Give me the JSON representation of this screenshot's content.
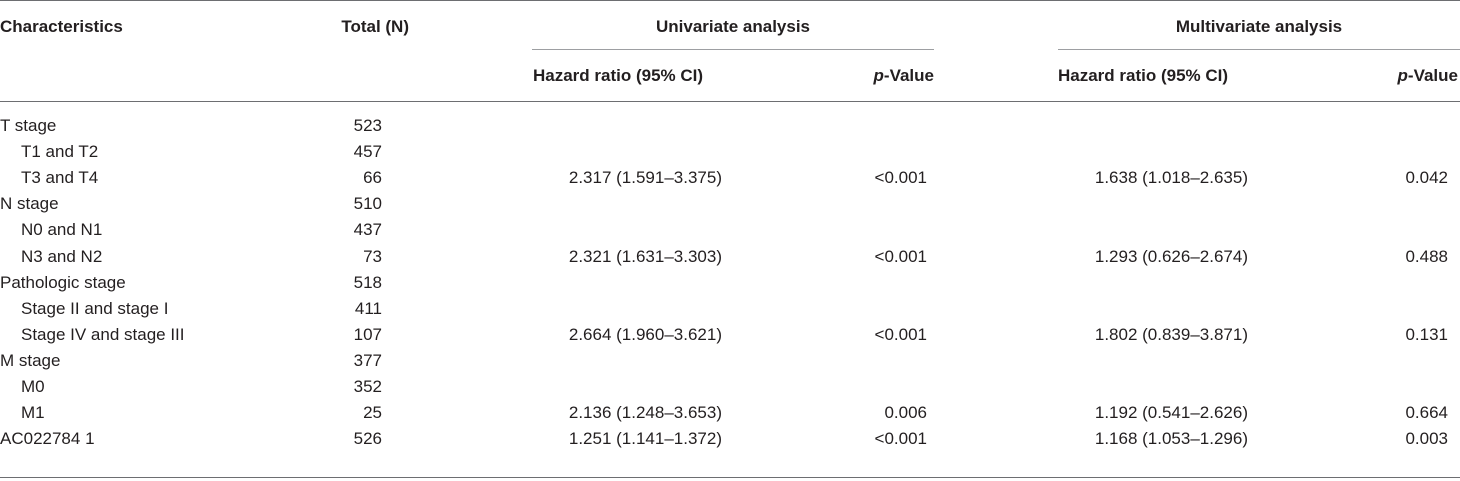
{
  "headers": {
    "characteristics": "Characteristics",
    "total": "Total (N)",
    "univariate": "Univariate analysis",
    "multivariate": "Multivariate analysis",
    "hazard_ratio": "Hazard ratio (95% CI)",
    "p_italic": "p",
    "p_rest": "-Value"
  },
  "rows": [
    {
      "label": "T stage",
      "total": "523",
      "uni_hr": "",
      "uni_p": "",
      "multi_hr": "",
      "multi_p": ""
    },
    {
      "label": "T1 and T2",
      "total": "457",
      "uni_hr": "",
      "uni_p": "",
      "multi_hr": "",
      "multi_p": ""
    },
    {
      "label": "T3 and T4",
      "total": "66",
      "uni_hr": "2.317 (1.591–3.375)",
      "uni_p": "<0.001",
      "multi_hr": "1.638 (1.018–2.635)",
      "multi_p": "0.042"
    },
    {
      "label": "N stage",
      "total": "510",
      "uni_hr": "",
      "uni_p": "",
      "multi_hr": "",
      "multi_p": ""
    },
    {
      "label": "N0 and N1",
      "total": "437",
      "uni_hr": "",
      "uni_p": "",
      "multi_hr": "",
      "multi_p": ""
    },
    {
      "label": "N3 and N2",
      "total": "73",
      "uni_hr": "2.321 (1.631–3.303)",
      "uni_p": "<0.001",
      "multi_hr": "1.293 (0.626–2.674)",
      "multi_p": "0.488"
    },
    {
      "label": "Pathologic stage",
      "total": "518",
      "uni_hr": "",
      "uni_p": "",
      "multi_hr": "",
      "multi_p": ""
    },
    {
      "label": "Stage II and stage I",
      "total": "411",
      "uni_hr": "",
      "uni_p": "",
      "multi_hr": "",
      "multi_p": ""
    },
    {
      "label": "Stage IV and stage III",
      "total": "107",
      "uni_hr": "2.664 (1.960–3.621)",
      "uni_p": "<0.001",
      "multi_hr": "1.802 (0.839–3.871)",
      "multi_p": "0.131"
    },
    {
      "label": "M stage",
      "total": "377",
      "uni_hr": "",
      "uni_p": "",
      "multi_hr": "",
      "multi_p": ""
    },
    {
      "label": "M0",
      "total": "352",
      "uni_hr": "",
      "uni_p": "",
      "multi_hr": "",
      "multi_p": ""
    },
    {
      "label": "M1",
      "total": "25",
      "uni_hr": "2.136 (1.248–3.653)",
      "uni_p": "0.006",
      "multi_hr": "1.192 (0.541–2.626)",
      "multi_p": "0.664"
    },
    {
      "label": "AC022784 1",
      "total": "526",
      "uni_hr": "1.251 (1.141–1.372)",
      "uni_p": "<0.001",
      "multi_hr": "1.168 (1.053–1.296)",
      "multi_p": "0.003"
    }
  ]
}
